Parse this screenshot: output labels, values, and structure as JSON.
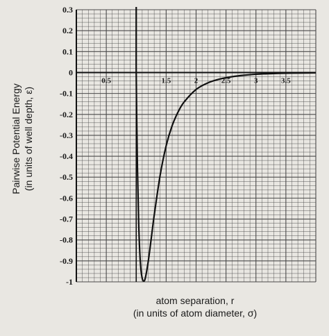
{
  "chart_data": {
    "type": "line",
    "title": "",
    "xlabel": "atom separation, r",
    "xlabel_sub": "(in units of atom diameter, σ)",
    "ylabel": "Pairwise  Potential Energy",
    "ylabel_sub": "(in units of well depth, ε)",
    "xlim": [
      0,
      4
    ],
    "ylim": [
      -1,
      0.3
    ],
    "x_ticks": [
      0.5,
      1.5,
      2,
      2.5,
      3,
      3.5
    ],
    "x_tick_labels": [
      "0.5",
      "1.5",
      "2",
      "2.5",
      "3",
      "3.5"
    ],
    "y_ticks": [
      0.3,
      0.2,
      0.1,
      0,
      -0.1,
      -0.2,
      -0.3,
      -0.4,
      -0.5,
      -0.6,
      -0.7,
      -0.8,
      -0.9,
      -1
    ],
    "y_tick_labels": [
      "0.3",
      "0.2",
      "0.1",
      "0",
      "-0.1",
      "-0.2",
      "-0.3",
      "-0.4",
      "-0.5",
      "-0.6",
      "-0.7",
      "-0.8",
      "-0.9",
      "-1"
    ],
    "grid": true,
    "series": [
      {
        "x": [
          1.0,
          1.02,
          1.04,
          1.06,
          1.08,
          1.1,
          1.12,
          1.15,
          1.2,
          1.25,
          1.3,
          1.4,
          1.5,
          1.6,
          1.7,
          1.8,
          2.0,
          2.2,
          2.4,
          2.6,
          2.8,
          3.0,
          3.3,
          3.6,
          4.0
        ],
        "y": [
          0.0,
          -0.448,
          -0.706,
          -0.862,
          -0.945,
          -0.983,
          -0.996,
          -0.984,
          -0.904,
          -0.795,
          -0.683,
          -0.49,
          -0.35,
          -0.254,
          -0.188,
          -0.141,
          -0.081,
          -0.049,
          -0.031,
          -0.02,
          -0.013,
          -0.0082,
          -0.0046,
          -0.0027,
          -0.0015
        ]
      }
    ],
    "colors": {
      "background": "#e9e7e2",
      "grid": "#4a4a4a",
      "curve": "#111111",
      "text": "#1a1a1a"
    }
  }
}
